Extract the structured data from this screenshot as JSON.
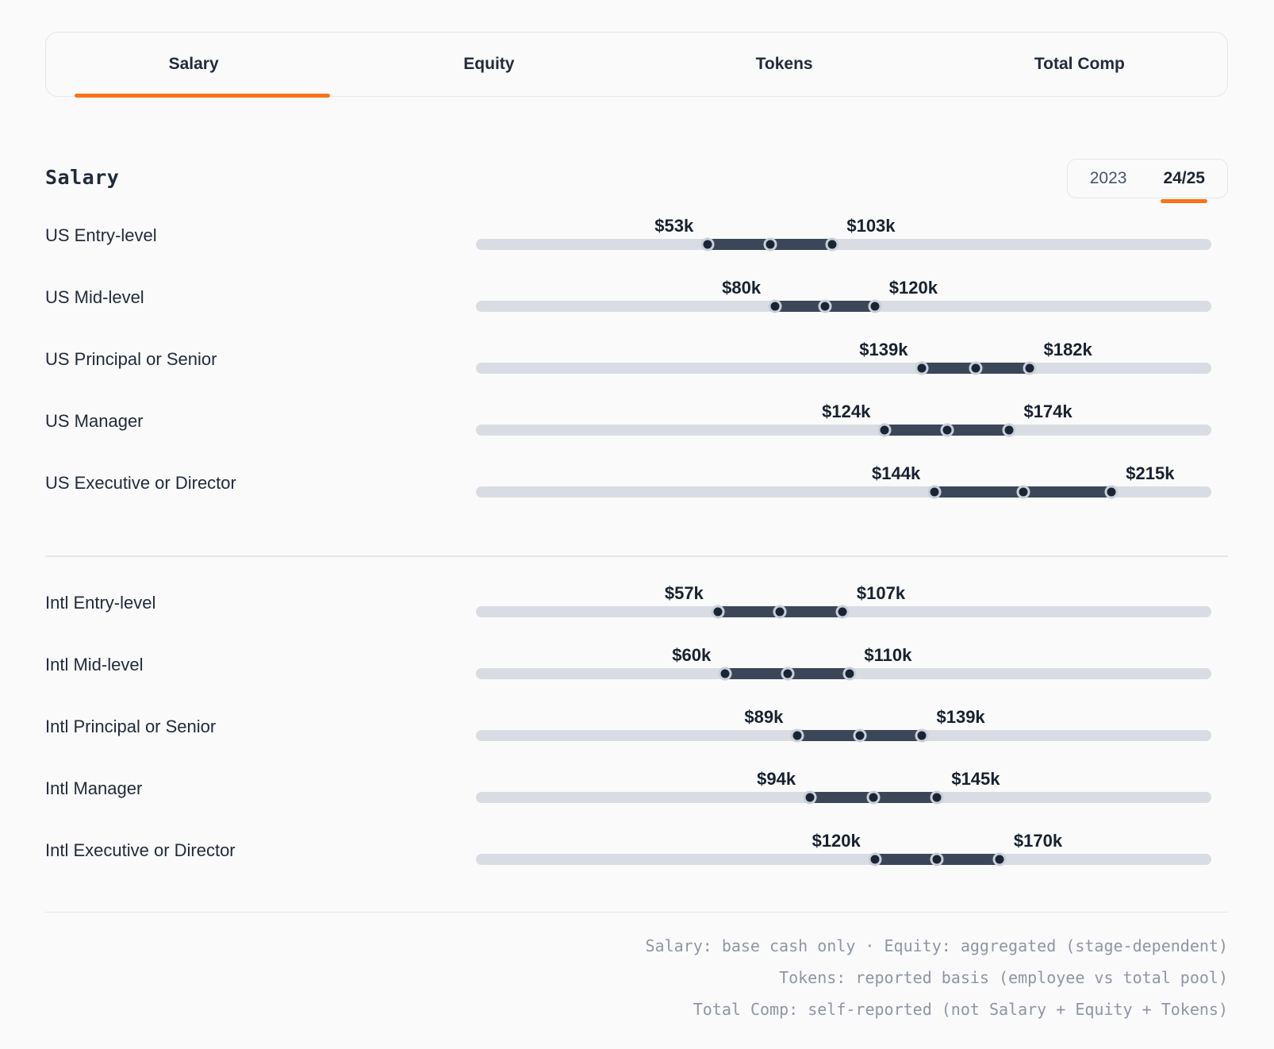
{
  "tabs": {
    "items": [
      {
        "label": "Salary",
        "active": true
      },
      {
        "label": "Equity",
        "active": false
      },
      {
        "label": "Tokens",
        "active": false
      },
      {
        "label": "Total Comp",
        "active": false
      }
    ]
  },
  "header": {
    "section_title": "Salary",
    "year_toggle": {
      "options": [
        {
          "label": "2023",
          "active": false
        },
        {
          "label": "24/25",
          "active": true
        }
      ]
    }
  },
  "chart_data": {
    "type": "range",
    "title": "Salary",
    "unit": "USD thousands",
    "axis": {
      "min": -40,
      "max": 255,
      "visible": false
    },
    "legend": "none",
    "groups": [
      {
        "name": "US",
        "rows": [
          {
            "label": "US Entry-level",
            "low": 53,
            "high": 103,
            "low_label": "$53k",
            "high_label": "$103k"
          },
          {
            "label": "US Mid-level",
            "low": 80,
            "high": 120,
            "low_label": "$80k",
            "high_label": "$120k"
          },
          {
            "label": "US Principal or Senior",
            "low": 139,
            "high": 182,
            "low_label": "$139k",
            "high_label": "$182k"
          },
          {
            "label": "US Manager",
            "low": 124,
            "high": 174,
            "low_label": "$124k",
            "high_label": "$174k"
          },
          {
            "label": "US Executive or Director",
            "low": 144,
            "high": 215,
            "low_label": "$144k",
            "high_label": "$215k"
          }
        ]
      },
      {
        "name": "Intl",
        "rows": [
          {
            "label": "Intl Entry-level",
            "low": 57,
            "high": 107,
            "low_label": "$57k",
            "high_label": "$107k"
          },
          {
            "label": "Intl Mid-level",
            "low": 60,
            "high": 110,
            "low_label": "$60k",
            "high_label": "$110k"
          },
          {
            "label": "Intl Principal or Senior",
            "low": 89,
            "high": 139,
            "low_label": "$89k",
            "high_label": "$139k"
          },
          {
            "label": "Intl Manager",
            "low": 94,
            "high": 145,
            "low_label": "$94k",
            "high_label": "$145k"
          },
          {
            "label": "Intl Executive or Director",
            "low": 120,
            "high": 170,
            "low_label": "$120k",
            "high_label": "$170k"
          }
        ]
      }
    ]
  },
  "footnotes": {
    "lines": [
      "Salary: base cash only · Equity: aggregated (stage-dependent)",
      "Tokens: reported basis (employee vs total pool)",
      "Total Comp: self-reported (not Salary + Equity + Tokens)"
    ]
  },
  "colors": {
    "accent": "#f97316",
    "track": "#d9dde3",
    "range_fill": "#3b4759",
    "handle": "#1b2433",
    "handle_ring": "#c9cfda",
    "text": "#222b3a",
    "footnote_text": "#8f96a3",
    "border": "#e4e6ea",
    "background": "#fafafa"
  }
}
